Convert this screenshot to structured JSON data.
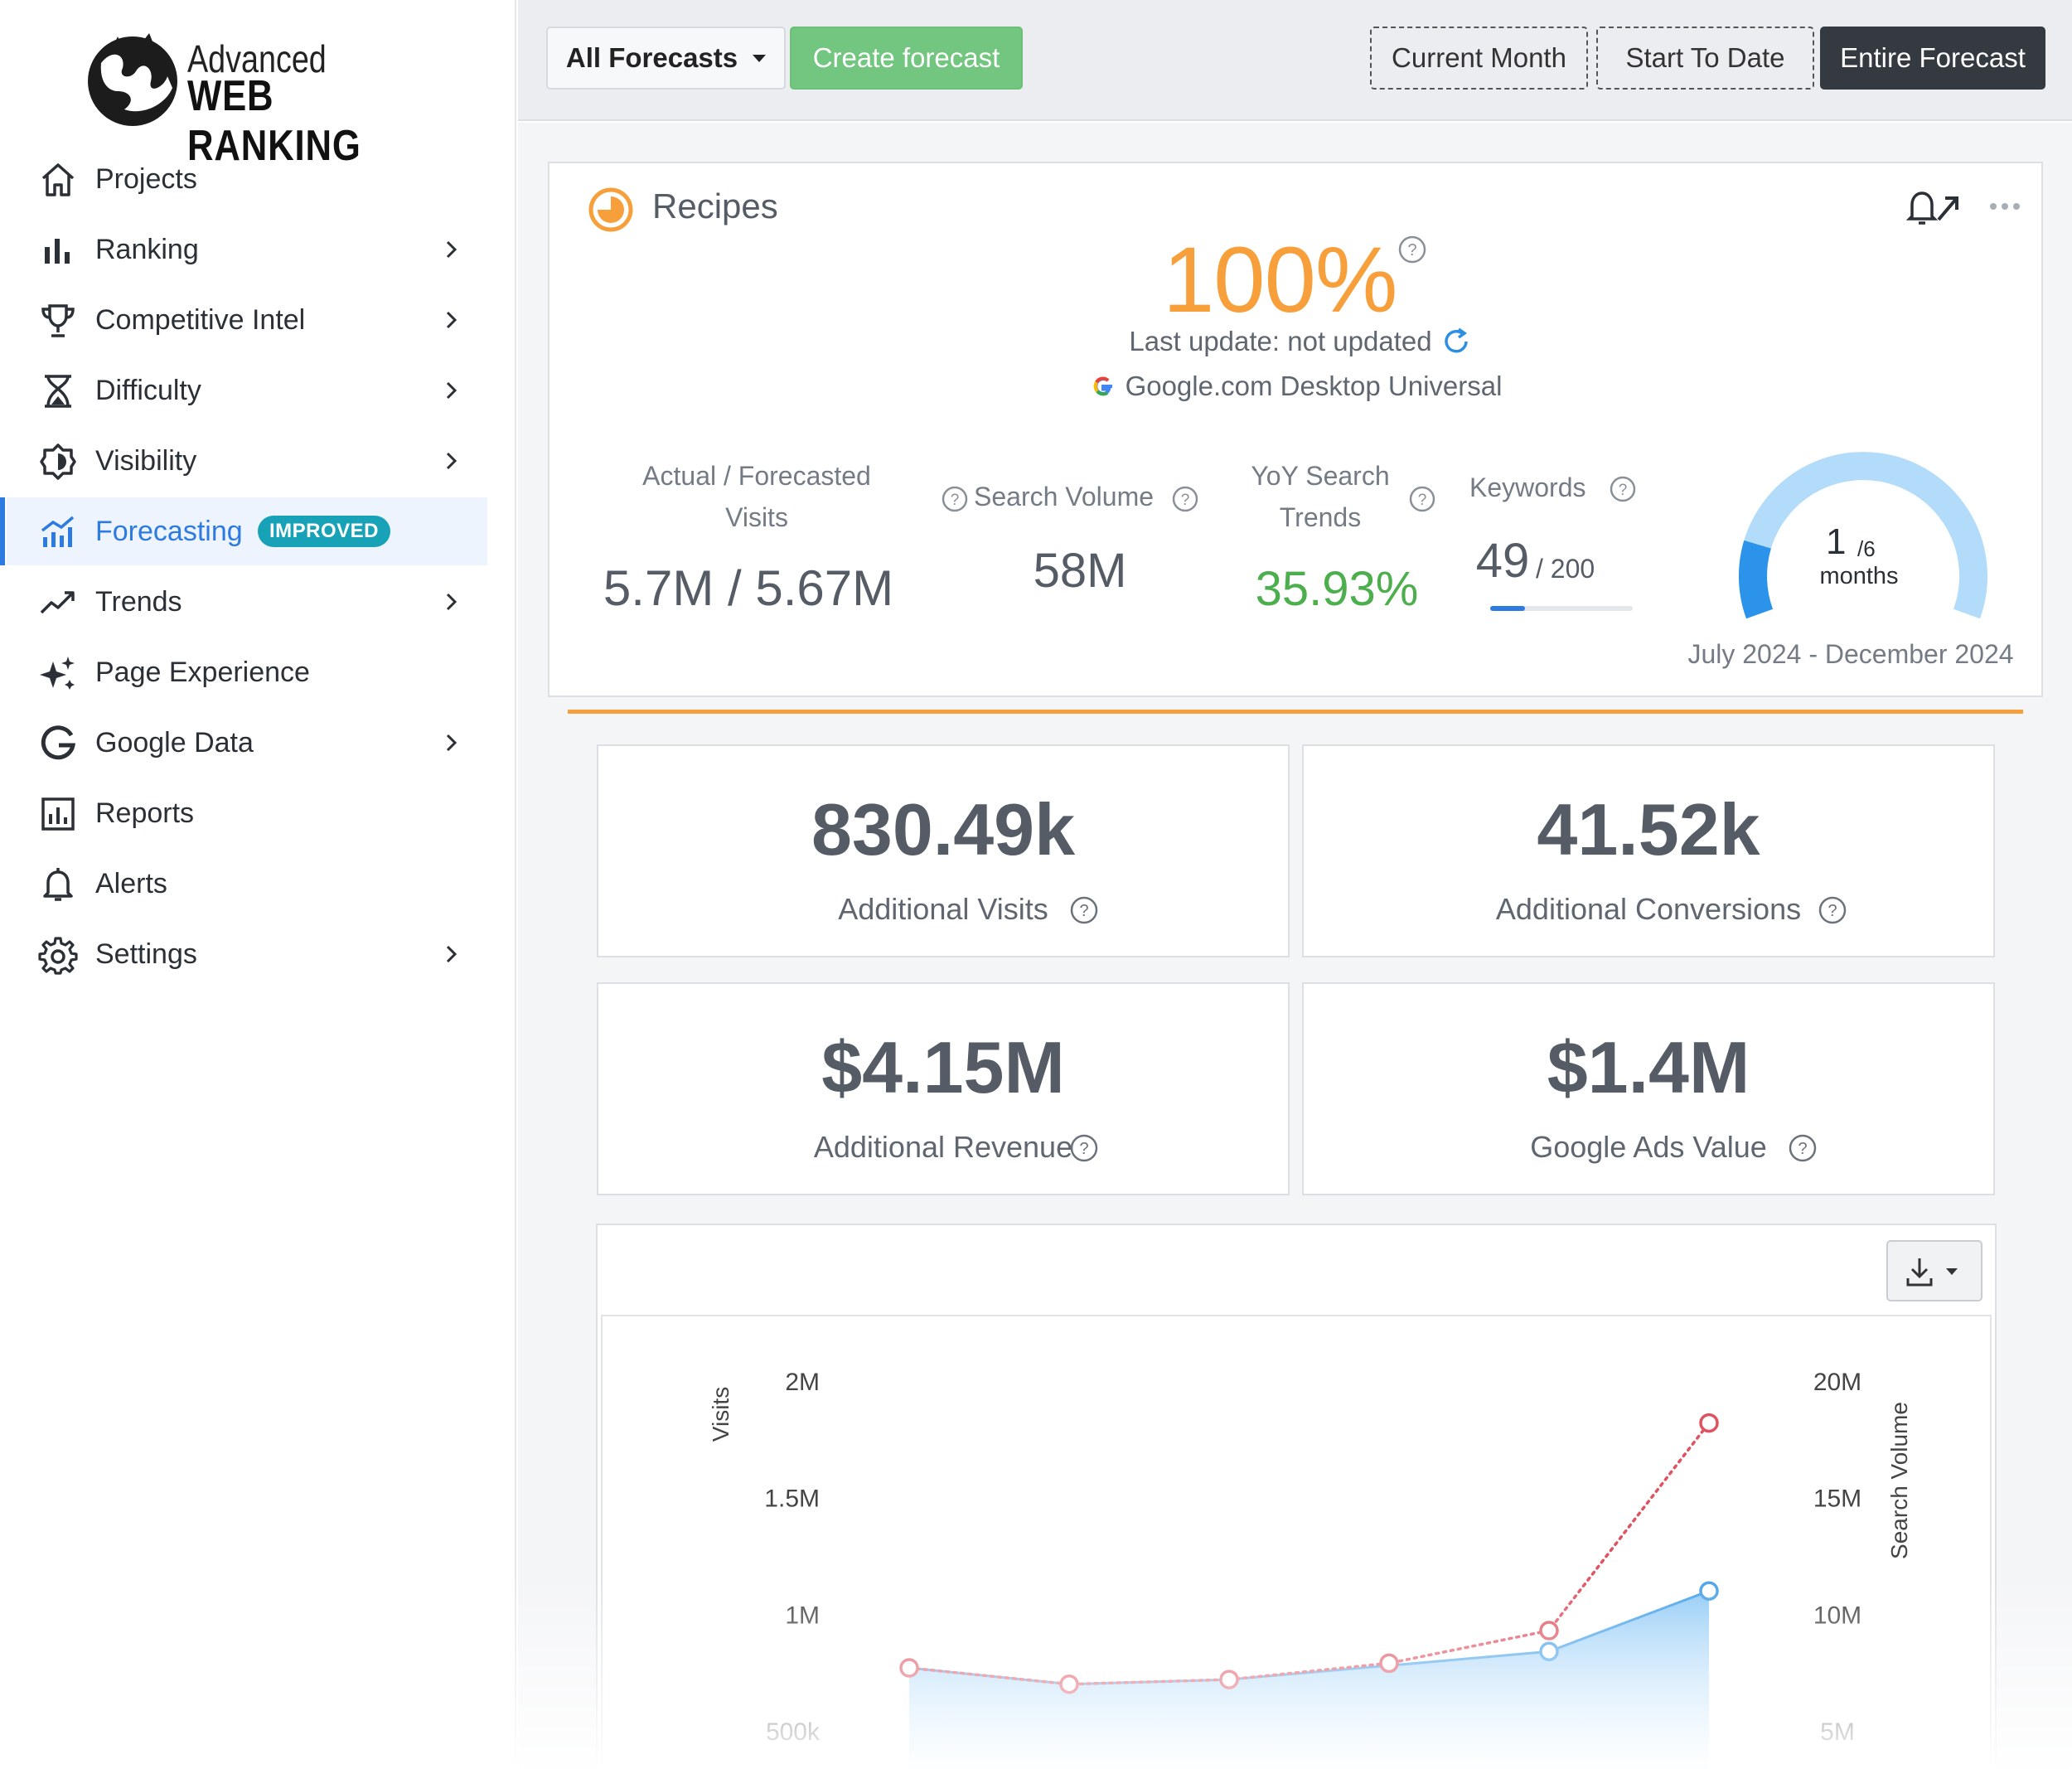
{
  "brand": {
    "line1": "Advanced",
    "line2": "WEB RANKING"
  },
  "nav": [
    {
      "label": "Projects",
      "icon": "home-icon",
      "chevron": false
    },
    {
      "label": "Ranking",
      "icon": "bar-chart-icon",
      "chevron": true
    },
    {
      "label": "Competitive Intel",
      "icon": "trophy-icon",
      "chevron": true
    },
    {
      "label": "Difficulty",
      "icon": "hourglass-icon",
      "chevron": true
    },
    {
      "label": "Visibility",
      "icon": "visibility-icon",
      "chevron": true
    },
    {
      "label": "Forecasting",
      "icon": "forecast-chart-icon",
      "chevron": false,
      "badge": "IMPROVED",
      "active": true
    },
    {
      "label": "Trends",
      "icon": "trend-up-icon",
      "chevron": true
    },
    {
      "label": "Page Experience",
      "icon": "sparkle-icon",
      "chevron": false
    },
    {
      "label": "Google Data",
      "icon": "google-g-icon",
      "chevron": true
    },
    {
      "label": "Reports",
      "icon": "report-icon",
      "chevron": false
    },
    {
      "label": "Alerts",
      "icon": "bell-icon",
      "chevron": false
    },
    {
      "label": "Settings",
      "icon": "gear-icon",
      "chevron": true
    }
  ],
  "toolbar": {
    "filter_label": "All Forecasts",
    "create_label": "Create forecast",
    "ranges": [
      "Current Month",
      "Start To Date",
      "Entire Forecast"
    ],
    "active_range": "Entire Forecast"
  },
  "forecast": {
    "name": "Recipes",
    "progress": "100%",
    "last_update": "Last update: not updated",
    "engine": "Google.com Desktop Universal",
    "metrics": {
      "visits_label_1": "Actual / Forecasted",
      "visits_label_2": "Visits",
      "visits_value": "5.7M / 5.67M",
      "search_volume_label": "Search Volume",
      "search_volume_value": "58M",
      "yoy_label_1": "YoY Search",
      "yoy_label_2": "Trends",
      "yoy_value": "35.93%",
      "keywords_label": "Keywords",
      "keywords_value": "49",
      "keywords_total": "/ 200",
      "keywords_fraction": 0.245
    },
    "duration": {
      "current": "1",
      "total": "/6",
      "unit": "months",
      "fraction": 0.1667,
      "range": "July 2024 - December 2024"
    }
  },
  "stats": [
    {
      "value": "830.49k",
      "label": "Additional Visits"
    },
    {
      "value": "41.52k",
      "label": "Additional Conversions"
    },
    {
      "value": "$4.15M",
      "label": "Additional Revenue"
    },
    {
      "value": "$1.4M",
      "label": "Google Ads Value"
    }
  ],
  "colors": {
    "accent": "#f7a03b",
    "primary": "#2d7be0",
    "green": "#4cae4c",
    "visits_series": "#e05260",
    "volume_series": "#4aa3ea"
  },
  "chart_data": {
    "type": "line",
    "ylabel": "Visits",
    "y2label": "Search Volume",
    "yticks": [
      "2M",
      "1.5M",
      "1M",
      "500k"
    ],
    "y2ticks": [
      "20M",
      "15M",
      "10M",
      "5M"
    ],
    "ylim": [
      500000,
      2000000
    ],
    "y2lim": [
      5000000,
      20000000
    ],
    "series": [
      {
        "values": [
          770000,
          700000,
          720000,
          790000,
          930000,
          1820000
        ]
      },
      {
        "axis": "right",
        "values": [
          7700000,
          7000000,
          7200000,
          7800000,
          8400000,
          11000000
        ]
      }
    ]
  }
}
